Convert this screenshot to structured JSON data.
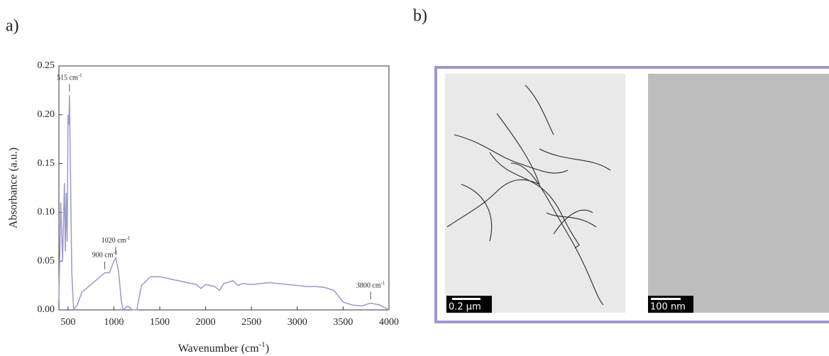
{
  "panel_labels": {
    "a": "a)",
    "b": "b)"
  },
  "scale_bars": [
    "0.2 µm",
    "100 nm"
  ],
  "chart_data": {
    "type": "line",
    "ylabel": "Absorbance (a.u.)",
    "xlabel": {
      "text": "Wavenumber (cm",
      "sup": "-1",
      "end": ")"
    },
    "xlim": [
      400,
      4000
    ],
    "ylim": [
      0,
      0.25
    ],
    "xticks": [
      500,
      1000,
      1500,
      2000,
      2500,
      3000,
      3500,
      4000
    ],
    "yticks": [
      {
        "value": 0,
        "label": "0.00"
      },
      {
        "value": 0.05,
        "label": "0.05"
      },
      {
        "value": 0.1,
        "label": "0.10"
      },
      {
        "value": 0.15,
        "label": "0.15"
      },
      {
        "value": 0.2,
        "label": "0.20"
      },
      {
        "value": 0.25,
        "label": "0.25"
      }
    ],
    "annotations": [
      {
        "text": "515 cm",
        "sup": "-1",
        "x": 515
      },
      {
        "text": "900 cm",
        "sup": "-1",
        "x": 900
      },
      {
        "text": "1020 cm",
        "sup": "-1",
        "x": 1020
      },
      {
        "text": "3800 cm",
        "sup": "-1",
        "x": 3800
      }
    ],
    "series": [
      {
        "color": "#9b98d0",
        "x": [
          400,
          420,
          440,
          460,
          470,
          480,
          490,
          500,
          510,
          515,
          525,
          540,
          560,
          600,
          650,
          700,
          800,
          900,
          950,
          1000,
          1020,
          1050,
          1080,
          1100,
          1150,
          1200,
          1250,
          1300,
          1400,
          1500,
          1600,
          1700,
          1800,
          1900,
          1950,
          2000,
          2100,
          2150,
          2200,
          2300,
          2350,
          2400,
          2500,
          2600,
          2700,
          2800,
          2900,
          3000,
          3100,
          3200,
          3300,
          3400,
          3500,
          3600,
          3700,
          3800,
          3900,
          4000
        ],
        "values": [
          0.01,
          0.11,
          0.05,
          0.13,
          0.06,
          0.12,
          0.07,
          0.2,
          0.19,
          0.22,
          0.15,
          0.04,
          0.0,
          0.005,
          0.018,
          0.022,
          0.03,
          0.038,
          0.038,
          0.05,
          0.053,
          0.04,
          0.01,
          0.0,
          0.004,
          0.0,
          0.0,
          0.025,
          0.034,
          0.034,
          0.032,
          0.03,
          0.028,
          0.026,
          0.022,
          0.026,
          0.024,
          0.02,
          0.027,
          0.03,
          0.025,
          0.027,
          0.026,
          0.027,
          0.028,
          0.027,
          0.026,
          0.025,
          0.024,
          0.024,
          0.023,
          0.02,
          0.008,
          0.005,
          0.004,
          0.007,
          0.005,
          0.0
        ]
      }
    ]
  }
}
